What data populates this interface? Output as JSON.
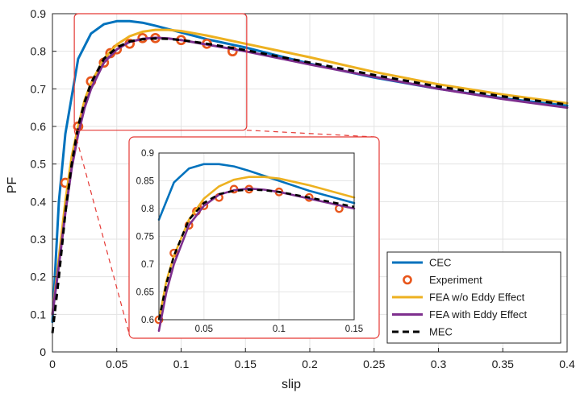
{
  "chart_data": {
    "type": "line",
    "title": "",
    "xlabel": "slip",
    "ylabel": "PF",
    "xlim": [
      0,
      0.4
    ],
    "ylim": [
      0,
      0.9
    ],
    "grid": true,
    "legend_position": "bottom-right",
    "x_ticks": [
      "0",
      "0.05",
      "0.1",
      "0.15",
      "0.2",
      "0.25",
      "0.3",
      "0.35",
      "0.4"
    ],
    "y_ticks": [
      "0",
      "0.1",
      "0.2",
      "0.3",
      "0.4",
      "0.5",
      "0.6",
      "0.7",
      "0.8",
      "0.9"
    ],
    "series": [
      {
        "name": "CEC",
        "style": "line",
        "color": "#0072bd",
        "x": [
          0,
          0.005,
          0.01,
          0.02,
          0.03,
          0.04,
          0.05,
          0.06,
          0.07,
          0.08,
          0.1,
          0.12,
          0.15,
          0.2,
          0.25,
          0.3,
          0.35,
          0.4
        ],
        "y": [
          0.08,
          0.4,
          0.58,
          0.78,
          0.847,
          0.872,
          0.88,
          0.88,
          0.876,
          0.868,
          0.85,
          0.832,
          0.81,
          0.767,
          0.73,
          0.7,
          0.675,
          0.655
        ]
      },
      {
        "name": "Experiment",
        "style": "marker",
        "color": "#e8561b",
        "x": [
          0.01,
          0.02,
          0.03,
          0.04,
          0.045,
          0.05,
          0.06,
          0.07,
          0.08,
          0.1,
          0.12,
          0.14
        ],
        "y": [
          0.45,
          0.6,
          0.72,
          0.77,
          0.795,
          0.805,
          0.82,
          0.835,
          0.835,
          0.83,
          0.82,
          0.8
        ]
      },
      {
        "name": "FEA w/o Eddy Effect",
        "style": "line",
        "color": "#edb120",
        "x": [
          0,
          0.005,
          0.01,
          0.015,
          0.02,
          0.025,
          0.03,
          0.04,
          0.05,
          0.06,
          0.07,
          0.08,
          0.09,
          0.1,
          0.12,
          0.15,
          0.2,
          0.25,
          0.3,
          0.35,
          0.4
        ],
        "y": [
          0.1,
          0.25,
          0.4,
          0.52,
          0.6,
          0.67,
          0.715,
          0.78,
          0.818,
          0.84,
          0.852,
          0.857,
          0.857,
          0.854,
          0.842,
          0.82,
          0.784,
          0.745,
          0.712,
          0.685,
          0.662
        ]
      },
      {
        "name": "FEA with Eddy Effect",
        "style": "line",
        "color": "#7e2f8e",
        "x": [
          0,
          0.005,
          0.01,
          0.015,
          0.02,
          0.025,
          0.03,
          0.04,
          0.05,
          0.06,
          0.07,
          0.08,
          0.09,
          0.1,
          0.12,
          0.15,
          0.2,
          0.25,
          0.3,
          0.35,
          0.4
        ],
        "y": [
          0.1,
          0.23,
          0.37,
          0.49,
          0.58,
          0.65,
          0.7,
          0.77,
          0.805,
          0.825,
          0.833,
          0.836,
          0.834,
          0.83,
          0.818,
          0.8,
          0.765,
          0.732,
          0.7,
          0.673,
          0.65
        ]
      },
      {
        "name": "MEC",
        "style": "dashed",
        "color": "#000000",
        "x": [
          0,
          0.005,
          0.01,
          0.015,
          0.02,
          0.025,
          0.03,
          0.04,
          0.05,
          0.06,
          0.07,
          0.08,
          0.09,
          0.1,
          0.12,
          0.15,
          0.2,
          0.25,
          0.3,
          0.35,
          0.4
        ],
        "y": [
          0.05,
          0.2,
          0.37,
          0.5,
          0.6,
          0.665,
          0.715,
          0.78,
          0.81,
          0.826,
          0.832,
          0.834,
          0.833,
          0.83,
          0.82,
          0.803,
          0.77,
          0.737,
          0.706,
          0.68,
          0.658
        ]
      }
    ],
    "inset": {
      "xlim": [
        0.02,
        0.15
      ],
      "ylim": [
        0.6,
        0.9
      ],
      "x_ticks": [
        "0.05",
        "0.1",
        "0.15"
      ],
      "y_ticks": [
        "0.6",
        "0.65",
        "0.7",
        "0.75",
        "0.8",
        "0.85",
        "0.9"
      ]
    },
    "zoom_region": {
      "xlim": [
        0.017,
        0.151
      ],
      "ylim": [
        0.59,
        0.9
      ]
    }
  }
}
